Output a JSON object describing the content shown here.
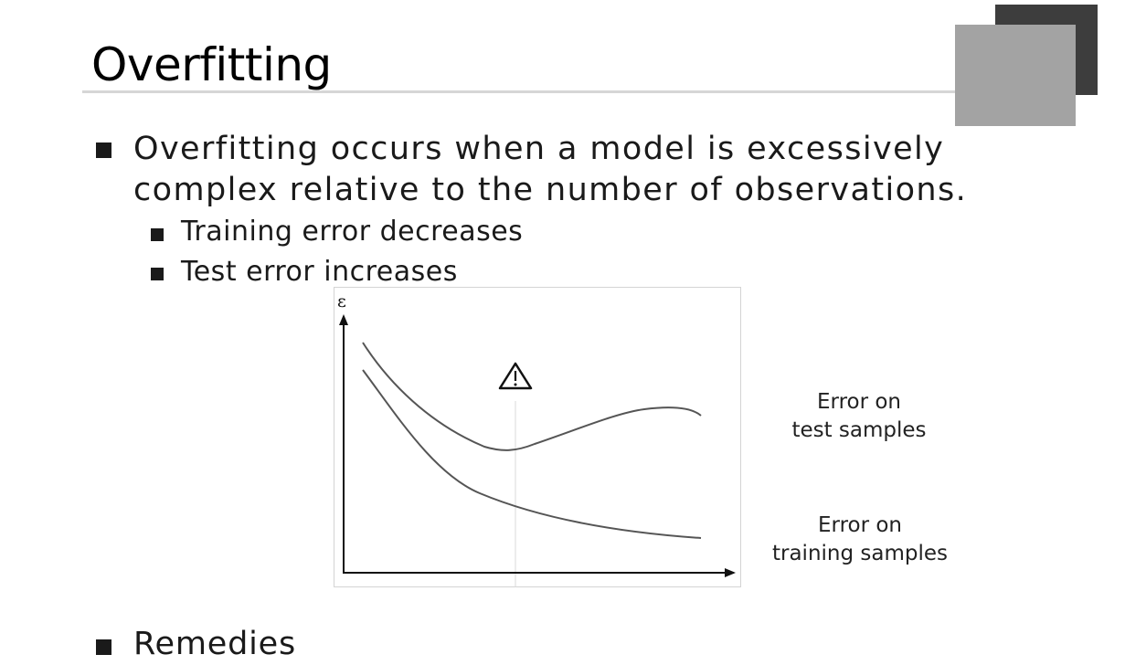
{
  "slide": {
    "title": "Overfitting",
    "bullets": [
      {
        "text": "Overfitting occurs when a model is excessively complex relative to the number of observations."
      },
      {
        "text": "Training error decreases"
      },
      {
        "text": "Test error increases"
      },
      {
        "text": "Remedies"
      }
    ]
  },
  "chart_data": {
    "type": "line",
    "ylabel": "ε",
    "xlabel": "",
    "marker_icon": "warning-triangle-icon",
    "series": [
      {
        "name": "Error on test samples"
      },
      {
        "name": "Error on training samples"
      }
    ]
  },
  "legend": {
    "test": [
      "Error on",
      "test samples"
    ],
    "train": [
      "Error on",
      "training samples"
    ]
  },
  "colors": {
    "deco_dark": "#3d3d3d",
    "deco_light": "#a3a3a3",
    "rule": "#d6d6d6",
    "curve": "#555555"
  }
}
